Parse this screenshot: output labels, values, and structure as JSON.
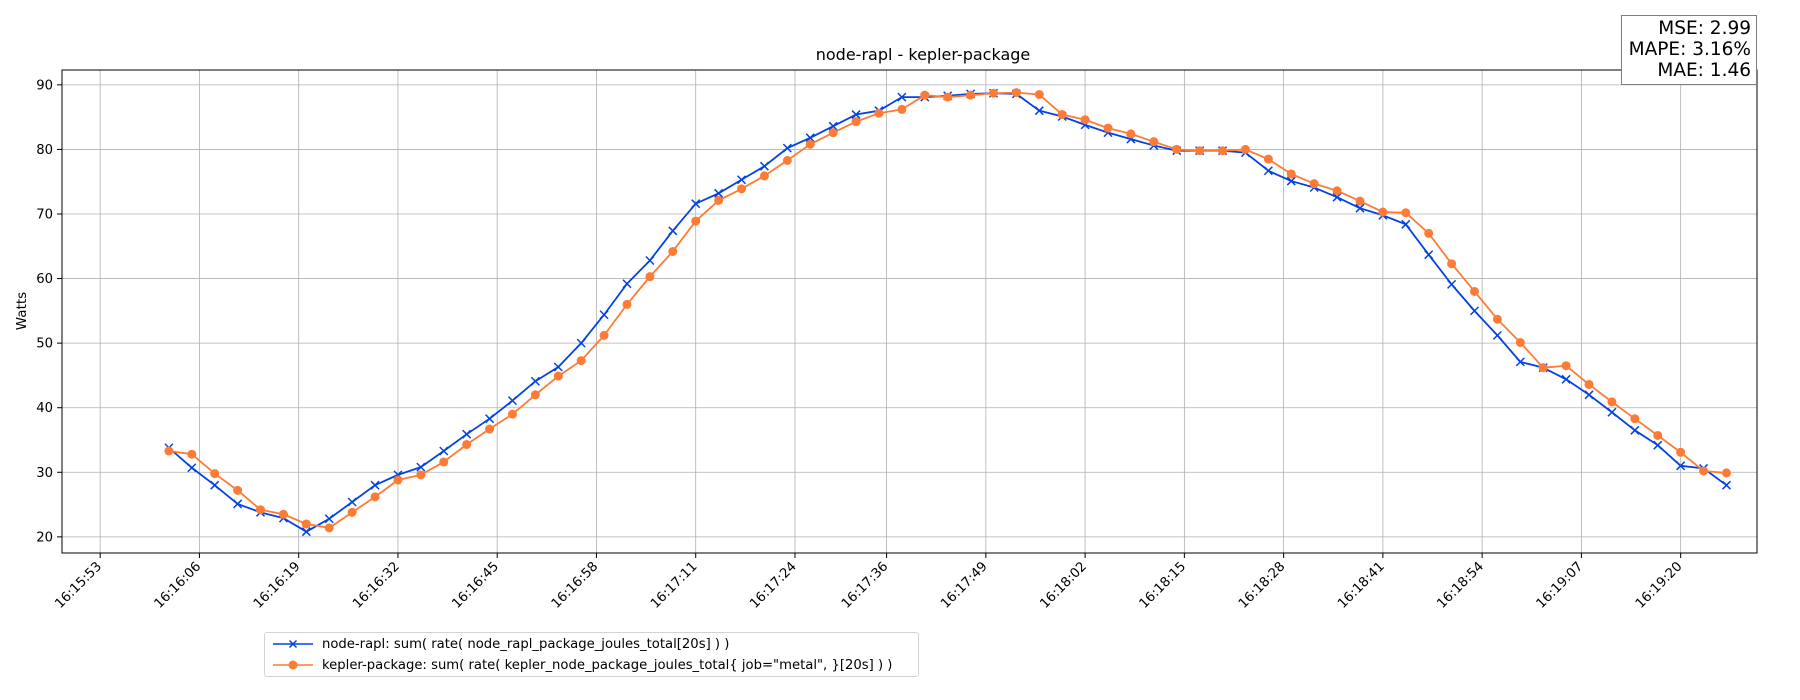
{
  "chart_data": {
    "type": "line",
    "title": "node-rapl - kepler-package",
    "xlabel": "",
    "ylabel": "Watts",
    "x_tick_labels": [
      "16:15:53",
      "16:16:06",
      "16:16:19",
      "16:16:32",
      "16:16:45",
      "16:16:58",
      "16:17:11",
      "16:17:24",
      "16:17:36",
      "16:17:49",
      "16:18:02",
      "16:18:15",
      "16:18:28",
      "16:18:41",
      "16:18:54",
      "16:19:07",
      "16:19:20"
    ],
    "y_ticks": [
      20,
      30,
      40,
      50,
      60,
      70,
      80,
      90
    ],
    "xlim": [
      "16:15:48",
      "16:19:30"
    ],
    "ylim": [
      17.5,
      92.3
    ],
    "grid": true,
    "legend_placement": "below plot, left",
    "x": [
      "16:16:02",
      "16:16:05",
      "16:16:08",
      "16:16:11",
      "16:16:14",
      "16:16:17",
      "16:16:20",
      "16:16:23",
      "16:16:26",
      "16:16:29",
      "16:16:32",
      "16:16:35",
      "16:16:38",
      "16:16:41",
      "16:16:44",
      "16:16:47",
      "16:16:50",
      "16:16:53",
      "16:16:56",
      "16:16:59",
      "16:17:02",
      "16:17:05",
      "16:17:08",
      "16:17:11",
      "16:17:14",
      "16:17:17",
      "16:17:20",
      "16:17:23",
      "16:17:26",
      "16:17:29",
      "16:17:32",
      "16:17:35",
      "16:17:38",
      "16:17:41",
      "16:17:44",
      "16:17:47",
      "16:17:50",
      "16:17:53",
      "16:17:56",
      "16:17:59",
      "16:18:02",
      "16:18:05",
      "16:18:08",
      "16:18:11",
      "16:18:14",
      "16:18:17",
      "16:18:20",
      "16:18:23",
      "16:18:26",
      "16:18:29",
      "16:18:32",
      "16:18:35",
      "16:18:38",
      "16:18:41",
      "16:18:44",
      "16:18:47",
      "16:18:50",
      "16:18:53",
      "16:18:56",
      "16:18:59",
      "16:19:02",
      "16:19:05",
      "16:19:08",
      "16:19:11",
      "16:19:14",
      "16:19:17",
      "16:19:20",
      "16:19:23",
      "16:19:26"
    ],
    "series": [
      {
        "name": "node-rapl: sum( rate( node_rapl_package_joules_total[20s] ) )",
        "color": "#0343df",
        "marker": "x",
        "values": [
          33.8,
          30.7,
          28.0,
          25.1,
          23.8,
          22.9,
          20.8,
          22.8,
          25.4,
          28.0,
          29.6,
          30.8,
          33.3,
          35.9,
          38.3,
          41.1,
          44.1,
          46.3,
          50.0,
          54.4,
          59.2,
          62.8,
          67.4,
          71.6,
          73.2,
          75.3,
          77.4,
          80.2,
          81.8,
          83.6,
          85.4,
          86.0,
          88.1,
          88.1,
          88.3,
          88.6,
          88.7,
          88.6,
          86.0,
          85.1,
          83.8,
          82.6,
          81.6,
          80.6,
          79.8,
          79.8,
          79.8,
          79.5,
          76.7,
          75.1,
          74.1,
          72.6,
          70.9,
          69.8,
          68.4,
          63.7,
          59.1,
          55.0,
          51.2,
          47.1,
          46.2,
          44.4,
          42.0,
          39.3,
          36.5,
          34.2,
          31.0,
          30.6,
          28.0
        ]
      },
      {
        "name": "kepler-package: sum( rate( kepler_node_package_joules_total{ job=\"metal\", }[20s] ) )",
        "color": "#fe7b35",
        "marker": "o",
        "values": [
          33.3,
          32.8,
          29.8,
          27.2,
          24.2,
          23.5,
          22.0,
          21.4,
          23.8,
          26.2,
          28.8,
          29.6,
          31.6,
          34.3,
          36.7,
          39.0,
          42.0,
          44.9,
          47.3,
          51.2,
          56.0,
          60.3,
          64.2,
          68.9,
          72.1,
          73.9,
          75.9,
          78.3,
          80.8,
          82.6,
          84.3,
          85.6,
          86.2,
          88.4,
          88.1,
          88.4,
          88.7,
          88.8,
          88.5,
          85.4,
          84.6,
          83.3,
          82.4,
          81.2,
          80.0,
          79.8,
          79.8,
          80.0,
          78.5,
          76.2,
          74.7,
          73.6,
          72.0,
          70.3,
          70.2,
          67.0,
          62.3,
          58.0,
          53.7,
          50.1,
          46.2,
          46.5,
          43.6,
          40.9,
          38.3,
          35.7,
          33.1,
          30.2,
          29.9
        ]
      }
    ]
  },
  "stats": {
    "mse": "MSE: 2.99",
    "mape": "MAPE: 3.16%",
    "mae": "MAE: 1.46"
  }
}
